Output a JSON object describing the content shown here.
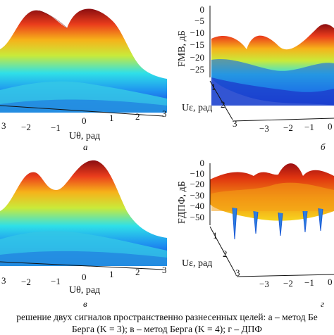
{
  "chart_data": [
    {
      "type": "surface",
      "panel_label": "а",
      "xlabel": "Uθ, рад",
      "x_ticks": [
        "3",
        "−2",
        "−1",
        "0",
        "1",
        "2",
        "3"
      ],
      "colormap": "jet"
    },
    {
      "type": "surface",
      "panel_label": "б",
      "zlabel": "FМВ, дБ",
      "z_ticks": [
        "0",
        "−5",
        "−10",
        "−15",
        "−20",
        "−25"
      ],
      "ylabel": "Uε, рад",
      "y_ticks": [
        "1",
        "2",
        "3"
      ],
      "x_ticks": [
        "−3",
        "−2",
        "−1",
        "0"
      ],
      "colormap": "jet"
    },
    {
      "type": "surface",
      "panel_label": "в",
      "xlabel": "Uθ, рад",
      "x_ticks": [
        "3",
        "−2",
        "−1",
        "0",
        "1",
        "2",
        "3"
      ],
      "colormap": "jet"
    },
    {
      "type": "surface",
      "panel_label": "г",
      "zlabel": "FДПФ, дБ",
      "z_ticks": [
        "0",
        "−10",
        "−20",
        "−30",
        "−40",
        "−50"
      ],
      "ylabel": "Uε, рад",
      "y_ticks": [
        "1",
        "2",
        "3"
      ],
      "x_ticks": [
        "−3",
        "−2",
        "−1",
        "0"
      ],
      "colormap": "jet"
    }
  ],
  "caption": {
    "line1": "решение двух сигналов пространственно разнесенных целей: а – метод Бе",
    "line2": "Берга (K = 3); в – метод Берга (K = 4); г – ДПФ"
  }
}
